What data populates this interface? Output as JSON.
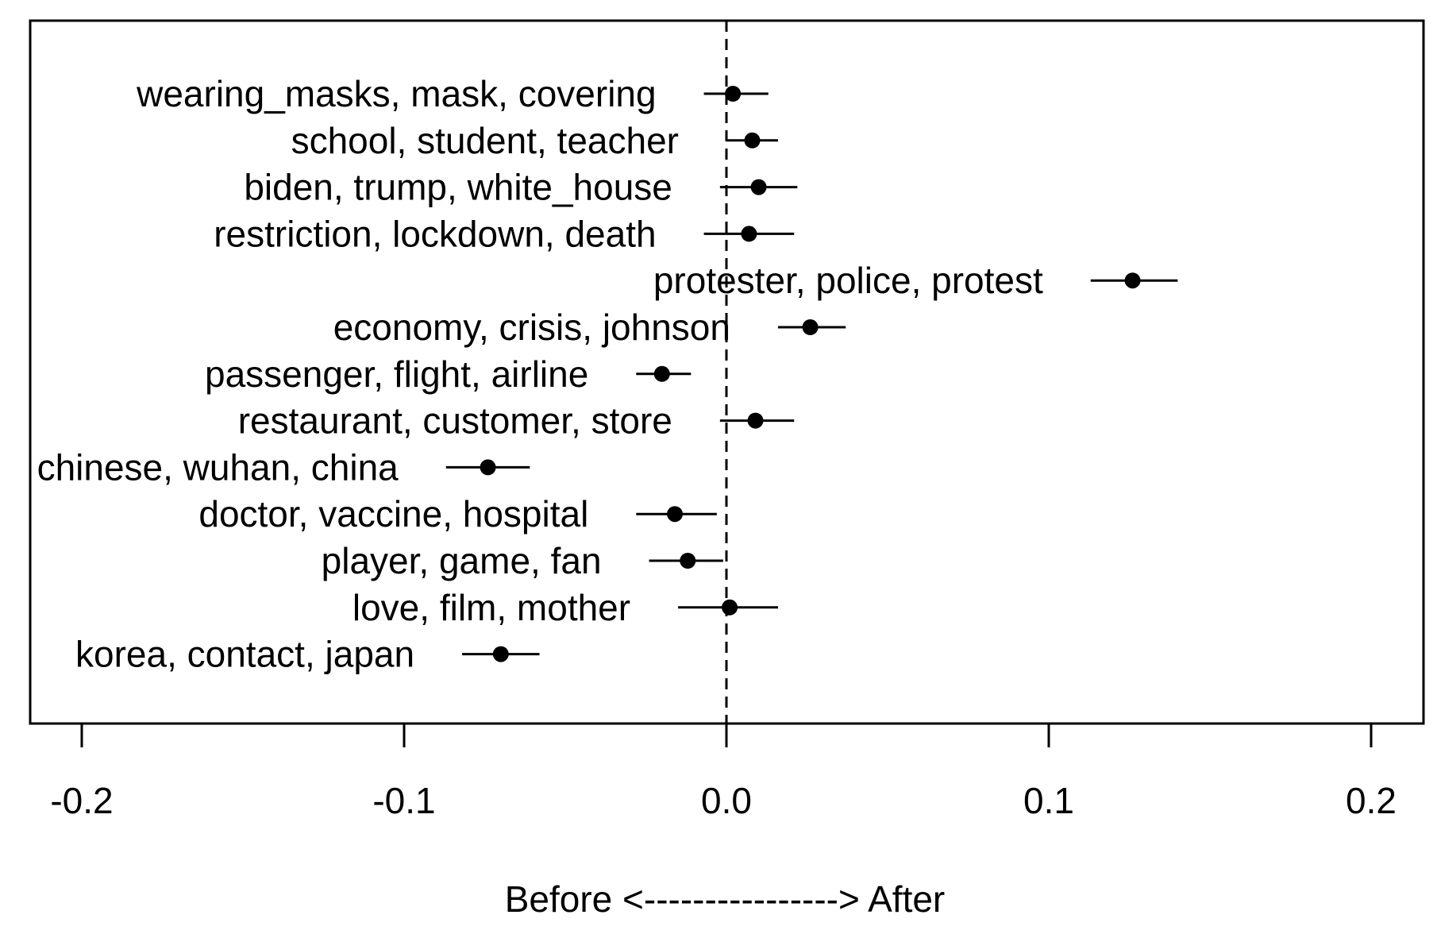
{
  "chart_data": {
    "type": "scatter",
    "subtype": "coefficient-plot-with-error-bars",
    "title": "",
    "xlabel": "Before <----------------> After",
    "ylabel": "",
    "xlim": [
      -0.2,
      0.2
    ],
    "xticks": [
      "-0.2",
      "-0.1",
      "0.0",
      "0.1",
      "0.2"
    ],
    "reference_line": {
      "x": 0.0,
      "style": "dashed"
    },
    "grid": false,
    "legend": "none",
    "color": "#000000",
    "points": [
      {
        "label": "wearing_masks, mask, covering",
        "estimate": 0.002,
        "lower": -0.007,
        "upper": 0.013
      },
      {
        "label": "school, student, teacher",
        "estimate": 0.008,
        "lower": 0.0,
        "upper": 0.016
      },
      {
        "label": "biden, trump, white_house",
        "estimate": 0.01,
        "lower": -0.002,
        "upper": 0.022
      },
      {
        "label": "restriction, lockdown, death",
        "estimate": 0.007,
        "lower": -0.007,
        "upper": 0.021
      },
      {
        "label": "protester, police, protest",
        "estimate": 0.126,
        "lower": 0.113,
        "upper": 0.14
      },
      {
        "label": "economy, crisis, johnson",
        "estimate": 0.026,
        "lower": 0.016,
        "upper": 0.037
      },
      {
        "label": "passenger, flight, airline",
        "estimate": -0.02,
        "lower": -0.028,
        "upper": -0.011
      },
      {
        "label": "restaurant, customer, store",
        "estimate": 0.009,
        "lower": -0.002,
        "upper": 0.021
      },
      {
        "label": "chinese, wuhan, china",
        "estimate": -0.074,
        "lower": -0.087,
        "upper": -0.061
      },
      {
        "label": "doctor, vaccine, hospital",
        "estimate": -0.016,
        "lower": -0.028,
        "upper": -0.003
      },
      {
        "label": "player, game, fan",
        "estimate": -0.012,
        "lower": -0.024,
        "upper": -0.001
      },
      {
        "label": "love, film, mother",
        "estimate": 0.001,
        "lower": -0.015,
        "upper": 0.016
      },
      {
        "label": "korea, contact, japan",
        "estimate": -0.07,
        "lower": -0.082,
        "upper": -0.058
      }
    ]
  }
}
